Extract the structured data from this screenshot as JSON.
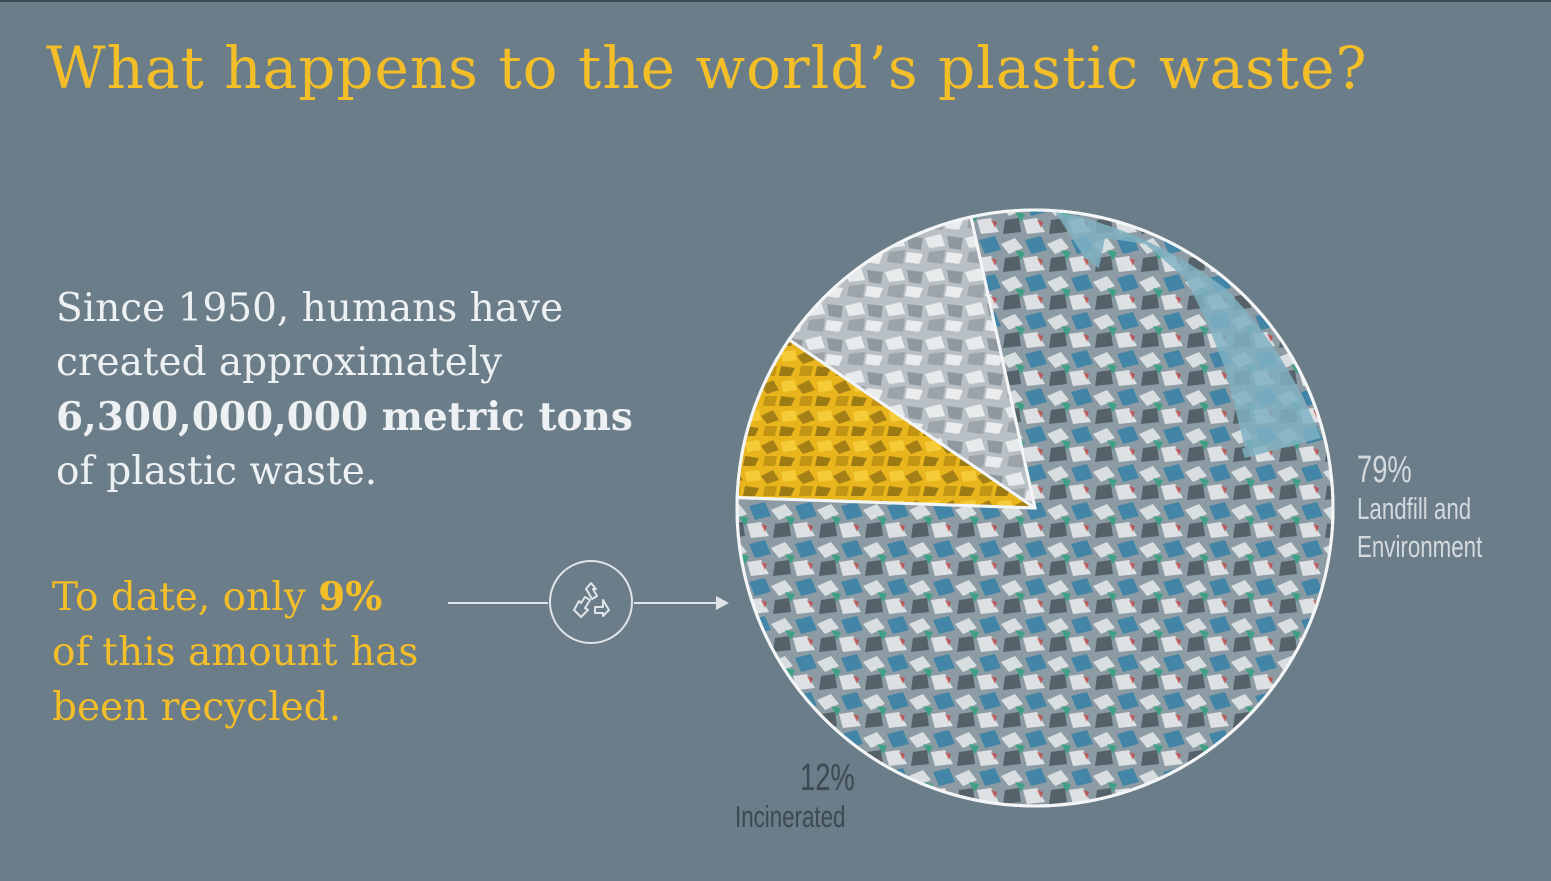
{
  "title": "What happens to the world’s plastic waste?",
  "intro": {
    "line1": "Since 1950, humans have",
    "line2": "created approximately",
    "bold": "6,300,000,000 metric tons",
    "line4": "of plastic waste."
  },
  "recycled_text": {
    "line1_pre": "To date, only ",
    "line1_bold": "9%",
    "line2": "of this amount has",
    "line3": "been recycled."
  },
  "icons": {
    "recycle": "recycle-icon",
    "arrow": "arrow-right-icon"
  },
  "colors": {
    "background": "#6a7d88",
    "title": "#f4be28",
    "recycled_slice": "#e9b51c",
    "incinerated_slice": "#c9ced2",
    "landfill_slice": "#8d9ca4",
    "sky": "#7fb0c2"
  },
  "chart_data": {
    "type": "pie",
    "title": "What happens to the world’s plastic waste?",
    "slices": [
      {
        "name": "Recycled",
        "value": 9,
        "label_pct": "9%",
        "label": ""
      },
      {
        "name": "Incinerated",
        "value": 12,
        "label_pct": "12%",
        "label": "Incinerated"
      },
      {
        "name": "Landfill and Environment",
        "value": 79,
        "label_pct": "79%",
        "label": "Landfill and Environment"
      }
    ],
    "labels": {
      "landfill_pct": "79%",
      "landfill_l1": "Landfill and",
      "landfill_l2": "Environment",
      "incinerated_pct": "12%",
      "incinerated_l1": "Incinerated"
    }
  }
}
